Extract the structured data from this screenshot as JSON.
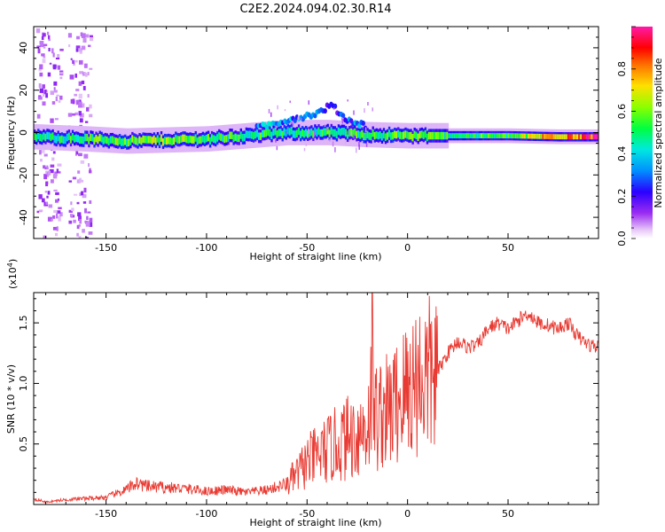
{
  "title": "C2E2.2024.094.02.30.R14",
  "colors": {
    "snr_line": "#e83a32",
    "frame": "#000000"
  },
  "chart_data": [
    {
      "type": "heatmap",
      "xlabel": "Height of straight line (km)",
      "ylabel": "Frequency (Hz)",
      "xlim": [
        -186,
        95
      ],
      "ylim": [
        -50,
        50
      ],
      "x_ticks": [
        -150,
        -100,
        -50,
        0,
        50
      ],
      "y_ticks": [
        -40,
        -20,
        0,
        20,
        40
      ],
      "colorbar": {
        "label": "Normalized spectral amplitude",
        "range": [
          0.0,
          1.0
        ],
        "ticks": [
          0.0,
          0.2,
          0.4,
          0.6,
          0.8
        ]
      },
      "ridge": [
        {
          "x": -186,
          "f": -2,
          "amp": 0.45
        },
        {
          "x": -160,
          "f": -3,
          "amp": 0.5
        },
        {
          "x": -140,
          "f": -4,
          "amp": 0.55
        },
        {
          "x": -120,
          "f": -3.5,
          "amp": 0.6
        },
        {
          "x": -100,
          "f": -3,
          "amp": 0.5
        },
        {
          "x": -80,
          "f": -1.5,
          "amp": 0.5
        },
        {
          "x": -60,
          "f": 0,
          "amp": 0.45
        },
        {
          "x": -40,
          "f": 0,
          "amp": 0.5
        },
        {
          "x": -20,
          "f": -1,
          "amp": 0.5
        },
        {
          "x": 0,
          "f": -1.5,
          "amp": 0.55
        },
        {
          "x": 20,
          "f": -1.5,
          "amp": 0.5
        },
        {
          "x": 50,
          "f": -1.5,
          "amp": 0.5
        },
        {
          "x": 75,
          "f": -2,
          "amp": 0.8
        },
        {
          "x": 95,
          "f": -2,
          "amp": 0.9
        }
      ],
      "branch": [
        {
          "x": -75,
          "f": 2,
          "amp": 0.4
        },
        {
          "x": -60,
          "f": 6,
          "amp": 0.35
        },
        {
          "x": -45,
          "f": 9,
          "amp": 0.3
        },
        {
          "x": -38,
          "f": 13,
          "amp": 0.2
        },
        {
          "x": -30,
          "f": 6,
          "amp": 0.3
        },
        {
          "x": -20,
          "f": 3,
          "amp": 0.35
        }
      ]
    },
    {
      "type": "line",
      "xlabel": "Height of straight line (km)",
      "ylabel": "SNR (10 * v/v)",
      "y_multiplier": "(x10",
      "y_multiplier_exp": "4",
      "y_multiplier_close": ")",
      "xlim": [
        -186,
        95
      ],
      "ylim": [
        0,
        1.75
      ],
      "x_ticks": [
        -150,
        -100,
        -50,
        0,
        50
      ],
      "y_ticks": [
        0.5,
        1.0,
        1.5
      ],
      "y_tick_labels": [
        "0.5",
        "1.0",
        "1.5"
      ],
      "series": [
        {
          "x": [
            -186,
            -180,
            -170,
            -160,
            -150,
            -140,
            -135,
            -130,
            -120,
            -110,
            -100,
            -90,
            -80,
            -70,
            -60,
            -55,
            -50,
            -45,
            -40,
            -35,
            -30,
            -25,
            -20,
            -18,
            -15,
            -12,
            -10,
            -5,
            0,
            5,
            10,
            15,
            20,
            25,
            30,
            35,
            40,
            45,
            50,
            55,
            60,
            65,
            70,
            75,
            80,
            85,
            90,
            95
          ],
          "y": [
            0.05,
            0.02,
            0.04,
            0.05,
            0.06,
            0.12,
            0.18,
            0.15,
            0.14,
            0.13,
            0.11,
            0.12,
            0.1,
            0.12,
            0.17,
            0.25,
            0.35,
            0.4,
            0.45,
            0.5,
            0.55,
            0.58,
            0.65,
            0.9,
            0.7,
            0.8,
            0.75,
            0.85,
            0.95,
            1.05,
            1.05,
            1.1,
            1.25,
            1.35,
            1.3,
            1.32,
            1.45,
            1.5,
            1.45,
            1.52,
            1.58,
            1.5,
            1.48,
            1.45,
            1.5,
            1.38,
            1.32,
            1.3
          ]
        }
      ]
    }
  ]
}
